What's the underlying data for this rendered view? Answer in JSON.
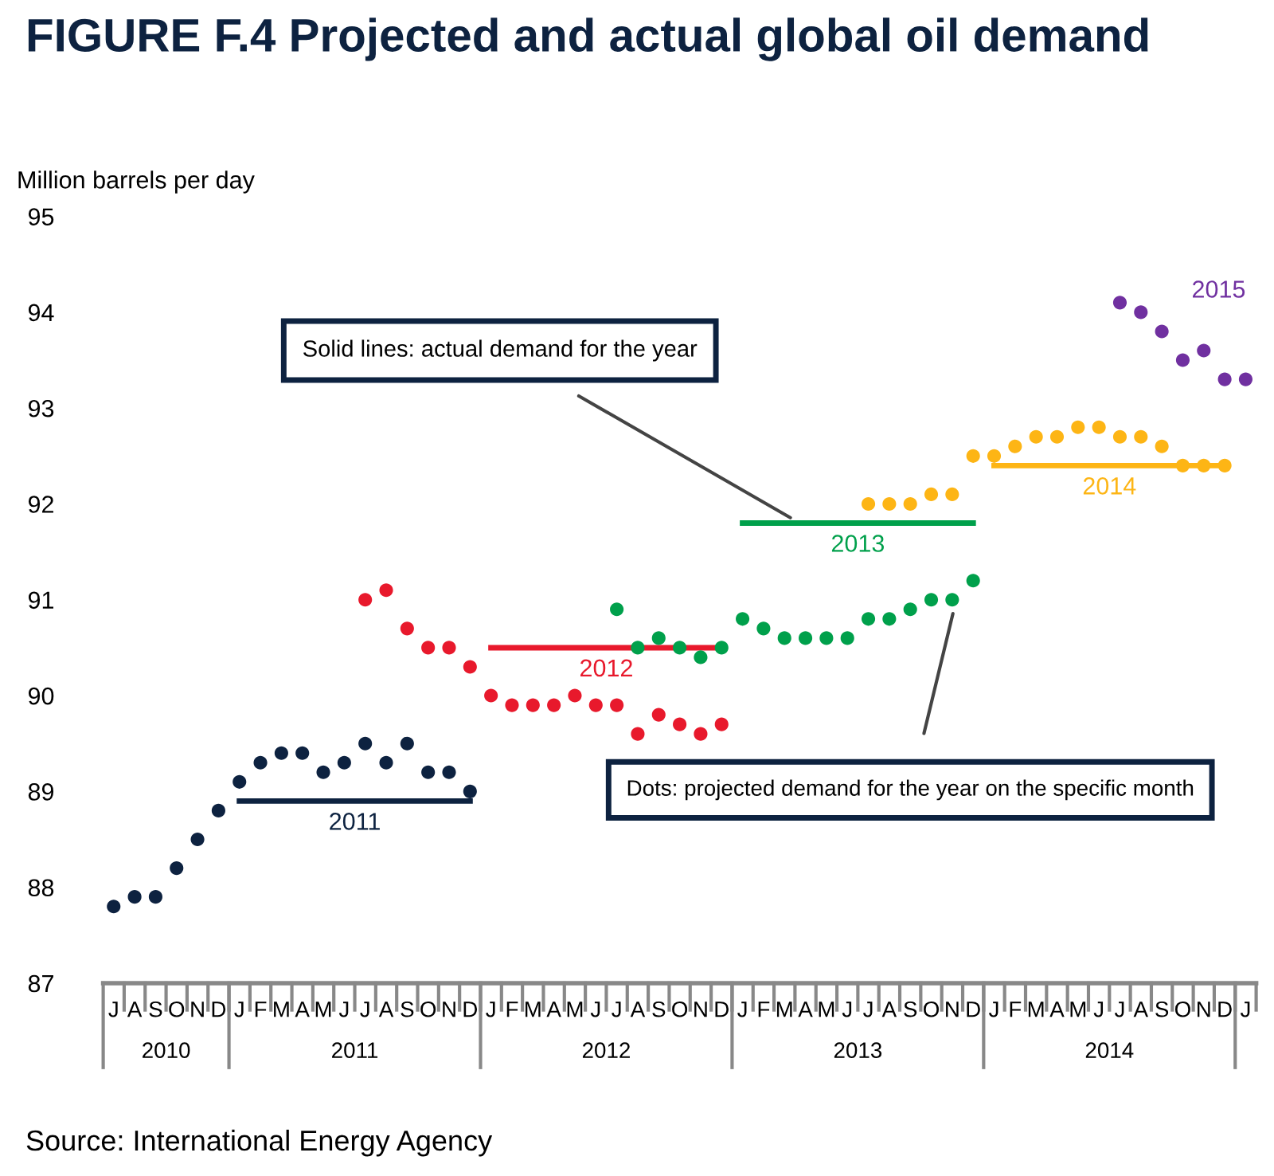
{
  "chart_data": {
    "type": "scatter",
    "title": "FIGURE F.4 Projected and actual global oil demand",
    "ylabel": "Million barrels per day",
    "categories": [
      "J",
      "A",
      "S",
      "O",
      "N",
      "D",
      "J",
      "F",
      "M",
      "A",
      "M",
      "J",
      "J",
      "A",
      "S",
      "O",
      "N",
      "D",
      "J",
      "F",
      "M",
      "A",
      "M",
      "J",
      "J",
      "A",
      "S",
      "O",
      "N",
      "D",
      "J",
      "F",
      "M",
      "A",
      "M",
      "J",
      "J",
      "A",
      "S",
      "O",
      "N",
      "D",
      "J",
      "F",
      "M",
      "A",
      "M",
      "J",
      "J",
      "A",
      "S",
      "O",
      "N",
      "D",
      "J"
    ],
    "ylim": [
      87,
      95
    ],
    "yticks": [
      87,
      88,
      89,
      90,
      91,
      92,
      93,
      94,
      95
    ],
    "grid": false,
    "legend": false,
    "marker": "circle",
    "line_style": "solid",
    "series": [
      {
        "color": "#0d2240",
        "values": [
          87.8,
          87.9,
          87.9,
          88.2,
          88.5,
          88.8,
          89.1,
          89.3,
          89.4,
          89.4,
          89.2,
          89.3,
          89.5,
          89.3,
          89.5,
          89.2,
          89.2,
          89.0,
          null,
          null,
          null,
          null,
          null,
          null,
          null,
          null,
          null,
          null,
          null,
          null,
          null,
          null,
          null,
          null,
          null,
          null,
          null,
          null,
          null,
          null,
          null,
          null,
          null,
          null,
          null,
          null,
          null,
          null,
          null,
          null,
          null,
          null,
          null,
          null,
          null
        ]
      },
      {
        "type": "line",
        "marker": "none",
        "name": "2011",
        "color": "#0d2240",
        "values": [
          null,
          null,
          null,
          null,
          null,
          null,
          88.9,
          88.9,
          88.9,
          88.9,
          88.9,
          88.9,
          88.9,
          88.9,
          88.9,
          88.9,
          88.9,
          88.9,
          null,
          null,
          null,
          null,
          null,
          null,
          null,
          null,
          null,
          null,
          null,
          null,
          null,
          null,
          null,
          null,
          null,
          null,
          null,
          null,
          null,
          null,
          null,
          null,
          null,
          null,
          null,
          null,
          null,
          null,
          null,
          null,
          null,
          null,
          null,
          null,
          null
        ]
      },
      {
        "color": "#e8192c",
        "values": [
          null,
          null,
          null,
          null,
          null,
          null,
          null,
          null,
          null,
          null,
          null,
          null,
          91.0,
          91.1,
          90.7,
          90.5,
          90.5,
          90.3,
          90.0,
          89.9,
          89.9,
          89.9,
          90.0,
          89.9,
          89.9,
          89.6,
          89.8,
          89.7,
          89.6,
          89.7,
          null,
          null,
          null,
          null,
          null,
          null,
          null,
          null,
          null,
          null,
          null,
          null,
          null,
          null,
          null,
          null,
          null,
          null,
          null,
          null,
          null,
          null,
          null,
          null,
          null
        ]
      },
      {
        "type": "line",
        "marker": "none",
        "name": "2012",
        "color": "#e8192c",
        "values": [
          null,
          null,
          null,
          null,
          null,
          null,
          null,
          null,
          null,
          null,
          null,
          null,
          null,
          null,
          null,
          null,
          null,
          null,
          90.5,
          90.5,
          90.5,
          90.5,
          90.5,
          90.5,
          90.5,
          90.5,
          90.5,
          90.5,
          90.5,
          90.5,
          null,
          null,
          null,
          null,
          null,
          null,
          null,
          null,
          null,
          null,
          null,
          null,
          null,
          null,
          null,
          null,
          null,
          null,
          null,
          null,
          null,
          null,
          null,
          null,
          null
        ]
      },
      {
        "color": "#00a04b",
        "values": [
          null,
          null,
          null,
          null,
          null,
          null,
          null,
          null,
          null,
          null,
          null,
          null,
          null,
          null,
          null,
          null,
          null,
          null,
          null,
          null,
          null,
          null,
          null,
          null,
          90.9,
          90.5,
          90.6,
          90.5,
          90.4,
          90.5,
          90.8,
          90.7,
          90.6,
          90.6,
          90.6,
          90.6,
          90.8,
          90.8,
          90.9,
          91.0,
          91.0,
          91.2,
          null,
          null,
          null,
          null,
          null,
          null,
          null,
          null,
          null,
          null,
          null,
          null,
          null
        ]
      },
      {
        "type": "line",
        "marker": "none",
        "name": "2013",
        "color": "#00a04b",
        "values": [
          null,
          null,
          null,
          null,
          null,
          null,
          null,
          null,
          null,
          null,
          null,
          null,
          null,
          null,
          null,
          null,
          null,
          null,
          null,
          null,
          null,
          null,
          null,
          null,
          null,
          null,
          null,
          null,
          null,
          null,
          91.8,
          91.8,
          91.8,
          91.8,
          91.8,
          91.8,
          91.8,
          91.8,
          91.8,
          91.8,
          91.8,
          91.8,
          null,
          null,
          null,
          null,
          null,
          null,
          null,
          null,
          null,
          null,
          null,
          null,
          null
        ]
      },
      {
        "color": "#fdb515",
        "values": [
          null,
          null,
          null,
          null,
          null,
          null,
          null,
          null,
          null,
          null,
          null,
          null,
          null,
          null,
          null,
          null,
          null,
          null,
          null,
          null,
          null,
          null,
          null,
          null,
          null,
          null,
          null,
          null,
          null,
          null,
          null,
          null,
          null,
          null,
          null,
          null,
          92.0,
          92.0,
          92.0,
          92.1,
          92.1,
          92.5,
          92.5,
          92.6,
          92.7,
          92.7,
          92.8,
          92.8,
          92.7,
          92.7,
          92.6,
          92.4,
          92.4,
          92.4,
          null
        ]
      },
      {
        "type": "line",
        "marker": "none",
        "name": "2014",
        "color": "#fdb515",
        "values": [
          null,
          null,
          null,
          null,
          null,
          null,
          null,
          null,
          null,
          null,
          null,
          null,
          null,
          null,
          null,
          null,
          null,
          null,
          null,
          null,
          null,
          null,
          null,
          null,
          null,
          null,
          null,
          null,
          null,
          null,
          null,
          null,
          null,
          null,
          null,
          null,
          null,
          null,
          null,
          null,
          null,
          null,
          92.4,
          92.4,
          92.4,
          92.4,
          92.4,
          92.4,
          92.4,
          92.4,
          92.4,
          92.4,
          92.4,
          92.4,
          null
        ]
      },
      {
        "name": "2015",
        "color": "#7030a0",
        "values": [
          null,
          null,
          null,
          null,
          null,
          null,
          null,
          null,
          null,
          null,
          null,
          null,
          null,
          null,
          null,
          null,
          null,
          null,
          null,
          null,
          null,
          null,
          null,
          null,
          null,
          null,
          null,
          null,
          null,
          null,
          null,
          null,
          null,
          null,
          null,
          null,
          null,
          null,
          null,
          null,
          null,
          null,
          null,
          null,
          null,
          null,
          null,
          null,
          94.1,
          94.0,
          93.8,
          93.5,
          93.6,
          93.3,
          93.3
        ]
      }
    ],
    "annotations": [
      "Solid lines: actual demand for the year",
      "Dots: projected demand for the year on the specific month",
      "Source: International Energy Agency",
      "2010",
      "2011",
      "2012",
      "2013",
      "2014"
    ]
  }
}
